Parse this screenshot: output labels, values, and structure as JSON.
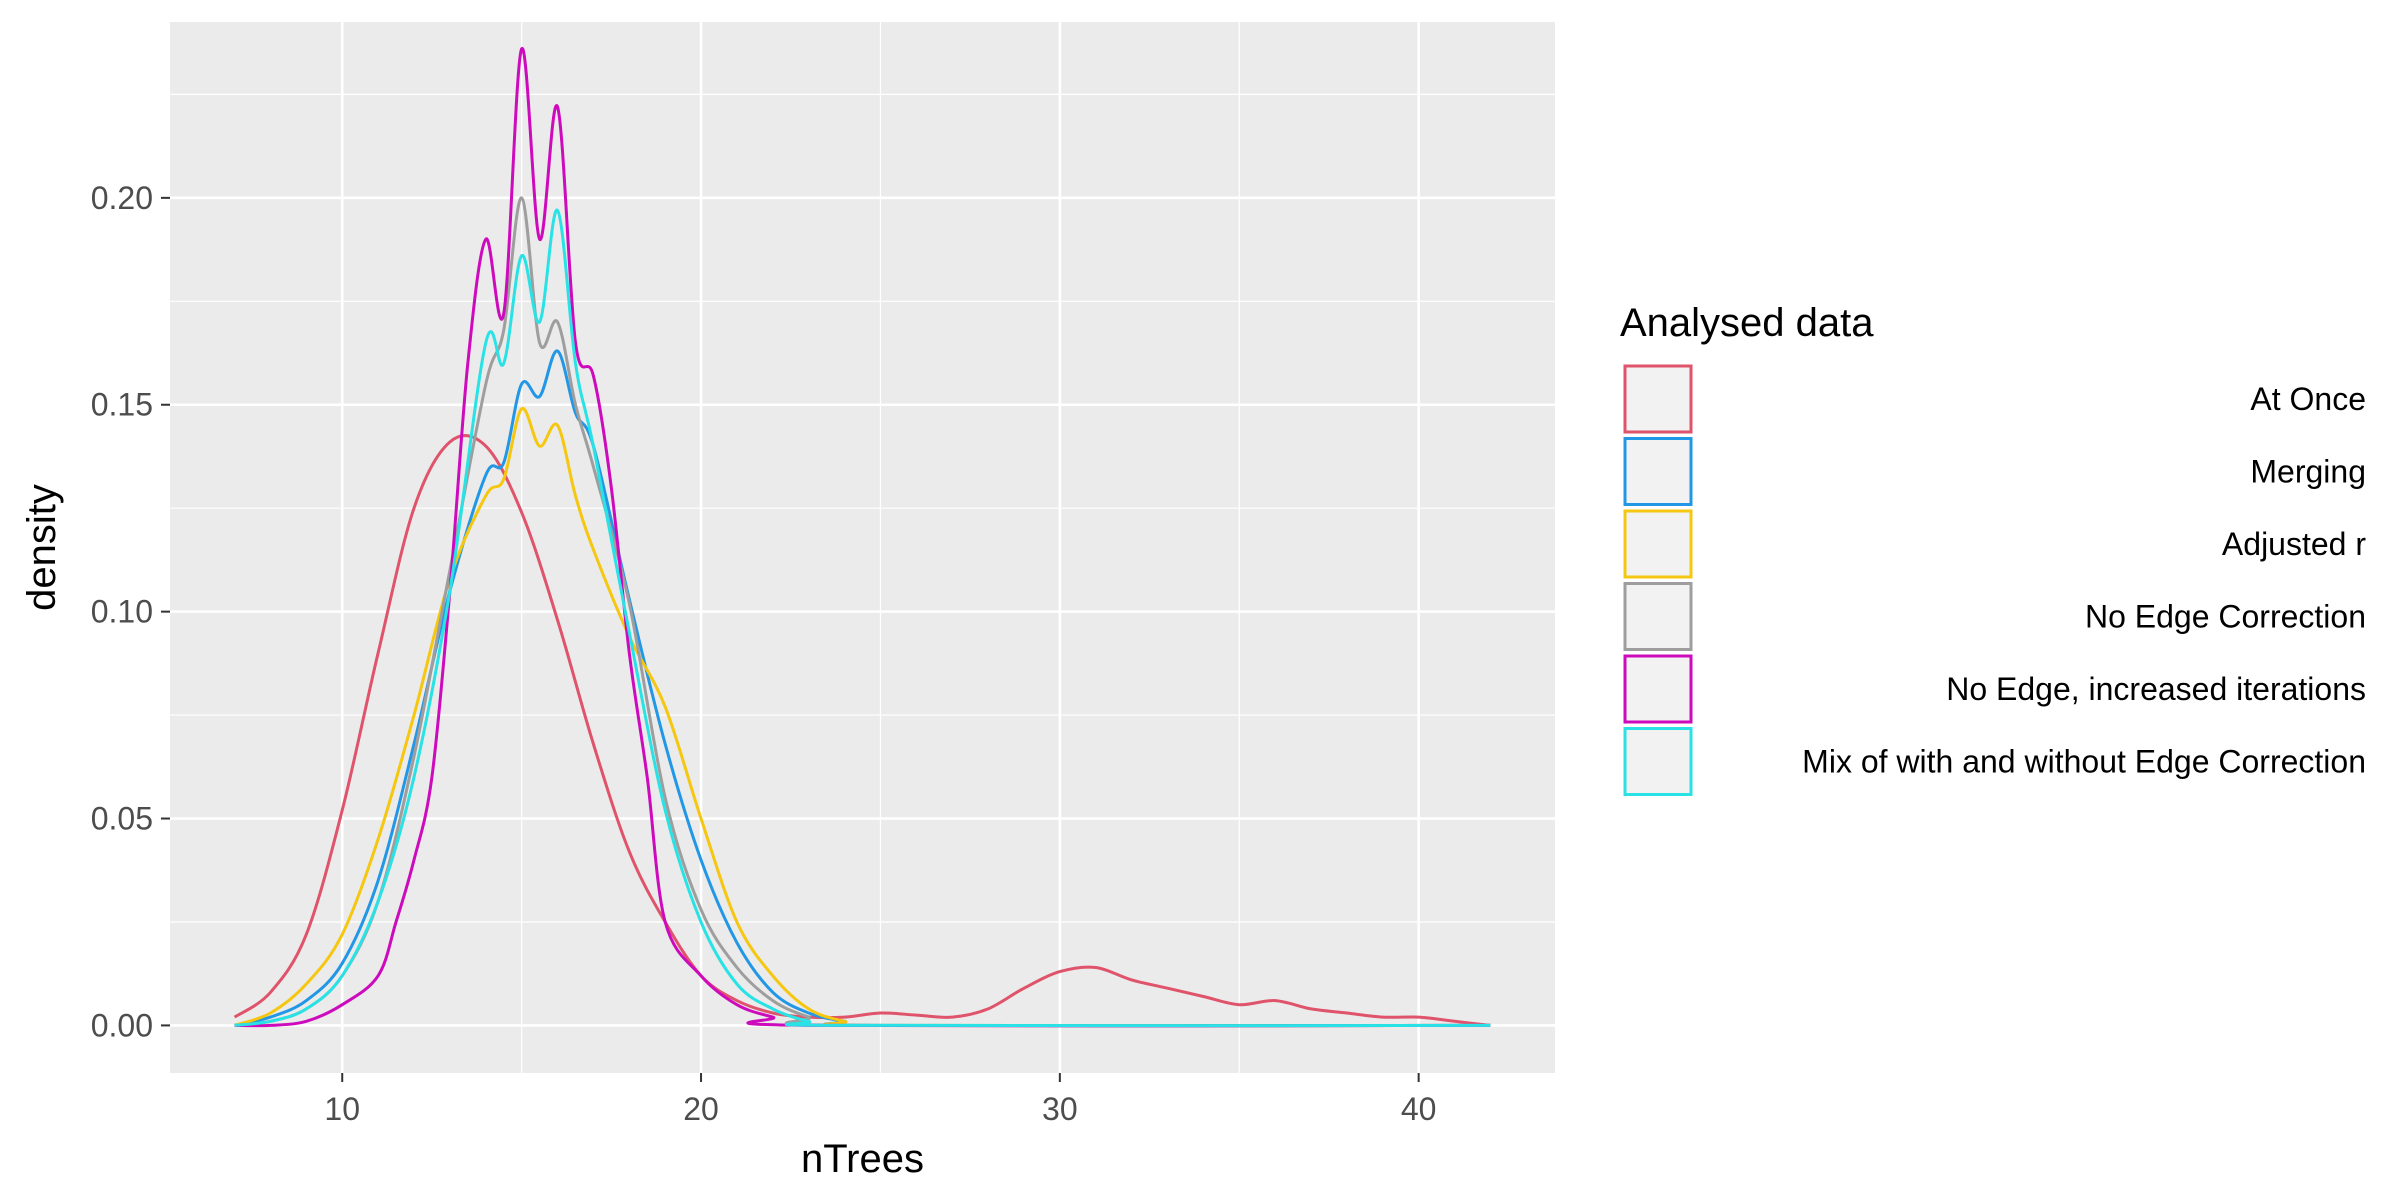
{
  "chart_data": {
    "type": "line",
    "title": "",
    "xlabel": "nTrees",
    "ylabel": "density",
    "xlim": [
      5.2,
      43.8
    ],
    "ylim": [
      -0.0115,
      0.2425
    ],
    "x_ticks": [
      10,
      20,
      30,
      40
    ],
    "y_ticks": [
      0.0,
      0.05,
      0.1,
      0.15,
      0.2
    ],
    "x_tick_labels": [
      "10",
      "20",
      "30",
      "40"
    ],
    "y_tick_labels": [
      "0.00",
      "0.05",
      "0.10",
      "0.15",
      "0.20"
    ],
    "grid": true,
    "legend": {
      "title": "Analysed data",
      "placement": "right"
    },
    "colors": {
      "panel_background": "#ebebeb",
      "grid": "#ffffff",
      "legend_key_fill": "#f2f2f2",
      "axis_text": "#4d4d4d",
      "axis_title": "#000000"
    },
    "series": [
      {
        "name": "At Once",
        "color": "#df536b",
        "points": [
          [
            7,
            0.002
          ],
          [
            8,
            0.008
          ],
          [
            9,
            0.022
          ],
          [
            10,
            0.052
          ],
          [
            11,
            0.09
          ],
          [
            12,
            0.125
          ],
          [
            13,
            0.141
          ],
          [
            14,
            0.14
          ],
          [
            15,
            0.124
          ],
          [
            16,
            0.098
          ],
          [
            17,
            0.068
          ],
          [
            18,
            0.042
          ],
          [
            19,
            0.025
          ],
          [
            20,
            0.012
          ],
          [
            21,
            0.006
          ],
          [
            22,
            0.003
          ],
          [
            23,
            0.002
          ],
          [
            24,
            0.002
          ],
          [
            25,
            0.003
          ],
          [
            26,
            0.0025
          ],
          [
            27,
            0.002
          ],
          [
            28,
            0.004
          ],
          [
            29,
            0.009
          ],
          [
            30,
            0.013
          ],
          [
            31,
            0.014
          ],
          [
            32,
            0.011
          ],
          [
            33,
            0.009
          ],
          [
            34,
            0.007
          ],
          [
            35,
            0.005
          ],
          [
            36,
            0.006
          ],
          [
            37,
            0.004
          ],
          [
            38,
            0.003
          ],
          [
            39,
            0.002
          ],
          [
            40,
            0.002
          ],
          [
            41,
            0.001
          ],
          [
            42,
            0.0
          ]
        ]
      },
      {
        "name": "Merging",
        "color": "#2297e6",
        "points": [
          [
            7,
            0.0
          ],
          [
            8,
            0.002
          ],
          [
            9,
            0.006
          ],
          [
            10,
            0.015
          ],
          [
            11,
            0.035
          ],
          [
            12,
            0.068
          ],
          [
            13,
            0.105
          ],
          [
            14,
            0.133
          ],
          [
            14.5,
            0.136
          ],
          [
            15,
            0.155
          ],
          [
            15.5,
            0.152
          ],
          [
            16,
            0.163
          ],
          [
            16.5,
            0.148
          ],
          [
            17,
            0.14
          ],
          [
            18,
            0.103
          ],
          [
            19,
            0.068
          ],
          [
            20,
            0.04
          ],
          [
            21,
            0.02
          ],
          [
            22,
            0.008
          ],
          [
            23,
            0.003
          ],
          [
            24,
            0.001
          ],
          [
            25,
            0.0
          ],
          [
            42,
            0.0
          ]
        ]
      },
      {
        "name": "Adjusted r",
        "color": "#f5c710",
        "points": [
          [
            7,
            0.0
          ],
          [
            8,
            0.003
          ],
          [
            9,
            0.01
          ],
          [
            10,
            0.022
          ],
          [
            11,
            0.045
          ],
          [
            12,
            0.075
          ],
          [
            13,
            0.108
          ],
          [
            14,
            0.128
          ],
          [
            14.5,
            0.132
          ],
          [
            15,
            0.149
          ],
          [
            15.5,
            0.14
          ],
          [
            16,
            0.145
          ],
          [
            16.5,
            0.128
          ],
          [
            17,
            0.115
          ],
          [
            18,
            0.094
          ],
          [
            19,
            0.077
          ],
          [
            20,
            0.05
          ],
          [
            21,
            0.025
          ],
          [
            22,
            0.012
          ],
          [
            23,
            0.004
          ],
          [
            24,
            0.001
          ],
          [
            25,
            0.0
          ],
          [
            42,
            0.0
          ]
        ]
      },
      {
        "name": "No Edge Correction",
        "color": "#9e9e9e",
        "points": [
          [
            7,
            0.0
          ],
          [
            8,
            0.001
          ],
          [
            9,
            0.004
          ],
          [
            10,
            0.012
          ],
          [
            11,
            0.03
          ],
          [
            12,
            0.065
          ],
          [
            13,
            0.11
          ],
          [
            14,
            0.155
          ],
          [
            14.5,
            0.168
          ],
          [
            15,
            0.2
          ],
          [
            15.5,
            0.165
          ],
          [
            16,
            0.17
          ],
          [
            16.5,
            0.15
          ],
          [
            17,
            0.135
          ],
          [
            18,
            0.102
          ],
          [
            19,
            0.055
          ],
          [
            20,
            0.028
          ],
          [
            21,
            0.014
          ],
          [
            22,
            0.006
          ],
          [
            23,
            0.002
          ],
          [
            24,
            0.0
          ],
          [
            42,
            0.0
          ]
        ]
      },
      {
        "name": "No Edge, increased iterations",
        "color": "#cd0bbc",
        "points": [
          [
            7,
            0.0
          ],
          [
            8,
            0.0
          ],
          [
            9,
            0.001
          ],
          [
            10,
            0.005
          ],
          [
            11,
            0.012
          ],
          [
            11.5,
            0.025
          ],
          [
            12,
            0.04
          ],
          [
            12.5,
            0.06
          ],
          [
            13,
            0.105
          ],
          [
            13.5,
            0.16
          ],
          [
            14,
            0.19
          ],
          [
            14.5,
            0.172
          ],
          [
            15,
            0.236
          ],
          [
            15.5,
            0.19
          ],
          [
            16,
            0.222
          ],
          [
            16.5,
            0.165
          ],
          [
            17,
            0.157
          ],
          [
            17.5,
            0.13
          ],
          [
            18,
            0.09
          ],
          [
            18.5,
            0.06
          ],
          [
            19,
            0.025
          ],
          [
            20,
            0.012
          ],
          [
            21,
            0.005
          ],
          [
            22,
            0.002
          ],
          [
            23,
            0.0
          ],
          [
            42,
            0.0
          ]
        ]
      },
      {
        "name": "Mix of with and without Edge Correction",
        "color": "#28e2e5",
        "points": [
          [
            7,
            0.0
          ],
          [
            8,
            0.001
          ],
          [
            9,
            0.004
          ],
          [
            10,
            0.012
          ],
          [
            11,
            0.03
          ],
          [
            12,
            0.06
          ],
          [
            13,
            0.105
          ],
          [
            14,
            0.165
          ],
          [
            14.5,
            0.16
          ],
          [
            15,
            0.186
          ],
          [
            15.5,
            0.17
          ],
          [
            16,
            0.197
          ],
          [
            16.5,
            0.16
          ],
          [
            17,
            0.14
          ],
          [
            18,
            0.095
          ],
          [
            19,
            0.052
          ],
          [
            20,
            0.025
          ],
          [
            21,
            0.01
          ],
          [
            22,
            0.004
          ],
          [
            23,
            0.001
          ],
          [
            24,
            0.0
          ],
          [
            42,
            0.0
          ]
        ]
      }
    ]
  }
}
